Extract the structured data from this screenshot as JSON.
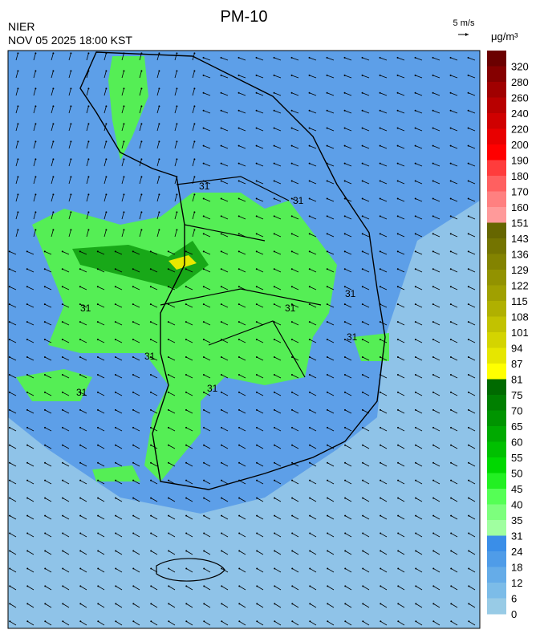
{
  "header": {
    "title": "PM-10",
    "agency": "NIER",
    "datetime": "NOV 05 2025 18:00 KST",
    "wind_scale": "5 m/s"
  },
  "map": {
    "contour_labels": [
      "31",
      "31",
      "31",
      "31",
      "31",
      "31",
      "31",
      "31",
      "31"
    ]
  },
  "legend": {
    "unit": "μg/m³",
    "labels": [
      320,
      280,
      260,
      240,
      220,
      200,
      190,
      180,
      170,
      160,
      151,
      143,
      136,
      129,
      122,
      115,
      108,
      101,
      94,
      87,
      81,
      75,
      70,
      65,
      60,
      55,
      50,
      45,
      40,
      35,
      31,
      24,
      18,
      12,
      6,
      0
    ],
    "colors": [
      "#6b0000",
      "#850000",
      "#a00000",
      "#b80000",
      "#d00000",
      "#e80000",
      "#ff0000",
      "#ff3c3c",
      "#ff6060",
      "#ff8080",
      "#ff9a9a",
      "#666600",
      "#747400",
      "#838300",
      "#929200",
      "#a0a000",
      "#b0b000",
      "#c2c200",
      "#d4d400",
      "#e6e600",
      "#ffff00",
      "#006a00",
      "#007f00",
      "#009400",
      "#00aa00",
      "#00c000",
      "#00d800",
      "#22f022",
      "#55ff55",
      "#7dff7d",
      "#a0ffa0",
      "#3a8ee8",
      "#4f9ce8",
      "#65ace8",
      "#7cbce8",
      "#98cbe6"
    ]
  }
}
